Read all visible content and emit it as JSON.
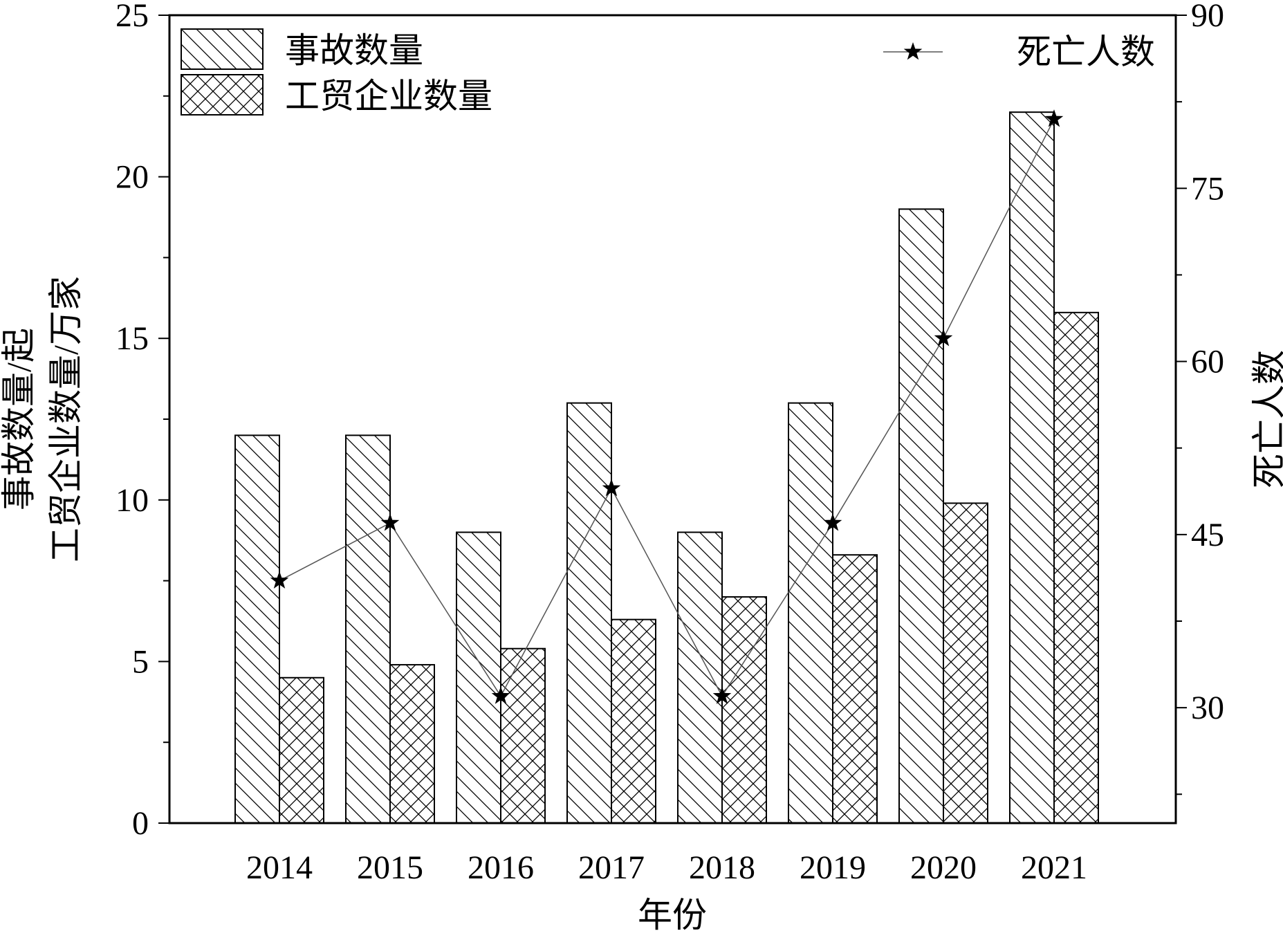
{
  "chart_data": {
    "type": "bar",
    "categories": [
      "2014",
      "2015",
      "2016",
      "2017",
      "2018",
      "2019",
      "2020",
      "2021"
    ],
    "series": [
      {
        "name": "事故数量",
        "axis": "left",
        "pattern": "diagonal-hatch",
        "values": [
          12,
          12,
          9,
          13,
          9,
          13,
          19,
          22
        ]
      },
      {
        "name": "工贸企业数量",
        "axis": "left",
        "pattern": "cross-hatch",
        "values": [
          4.5,
          4.9,
          5.4,
          6.3,
          7.0,
          8.3,
          9.9,
          15.8
        ]
      },
      {
        "name": "死亡人数",
        "axis": "right",
        "type": "line",
        "marker": "star",
        "values": [
          41,
          46,
          31,
          49,
          31,
          46,
          62,
          81
        ]
      }
    ],
    "xlabel": "年份",
    "ylabel_left_line1": "事故数量/起",
    "ylabel_left_line2": "工贸企业数量/万家",
    "ylabel_right": "死亡人数",
    "ylim_left": [
      0,
      25
    ],
    "ylim_right": [
      20,
      90
    ],
    "left_ticks": [
      0,
      5,
      10,
      15,
      20,
      25
    ],
    "right_ticks": [
      30,
      45,
      60,
      75,
      90
    ],
    "grid": false,
    "legend_left_placement": "top-left",
    "legend_right_placement": "top-right",
    "colors": {
      "bar_fill": "#ffffff",
      "stroke": "#000000",
      "line": "#555555"
    }
  }
}
